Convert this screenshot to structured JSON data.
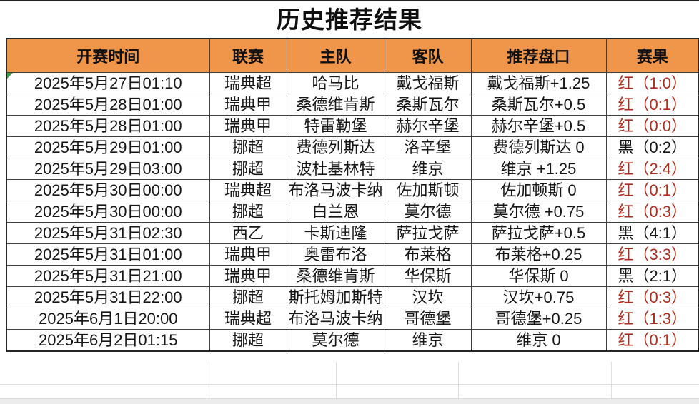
{
  "title": "历史推荐结果",
  "colors": {
    "header_bg": "#F0964B",
    "result_red": "#AE2E20",
    "result_black": "#161616",
    "flag_green": "#3C9B46",
    "border_dark": "#3F3F3F"
  },
  "icons": {
    "cell_flag": "green-corner-triangle"
  },
  "table": {
    "headers": [
      "开赛时间",
      "联赛",
      "主队",
      "客队",
      "推荐盘口",
      "赛果"
    ],
    "rows": [
      {
        "time": "2025年5月27日01:10",
        "league": "瑞典超",
        "home": "哈马比",
        "away": "戴戈福斯",
        "handicap": "戴戈福斯+1.25",
        "result": "红（1:0）",
        "outcome": "red",
        "flag": true
      },
      {
        "time": "2025年5月28日01:00",
        "league": "瑞典甲",
        "home": "桑德维肯斯",
        "away": "桑斯瓦尔",
        "handicap": "桑斯瓦尔+0.5",
        "result": "红（0:1）",
        "outcome": "red",
        "flag": false
      },
      {
        "time": "2025年5月28日01:00",
        "league": "瑞典甲",
        "home": "特雷勒堡",
        "away": "赫尔辛堡",
        "handicap": "赫尔辛堡+0.5",
        "result": "红（0:0）",
        "outcome": "red",
        "flag": false
      },
      {
        "time": "2025年5月29日01:00",
        "league": "挪超",
        "home": "费德列斯达",
        "away": "洛辛堡",
        "handicap": "费德列斯达 0",
        "result": "黑（0:2）",
        "outcome": "black",
        "flag": false
      },
      {
        "time": "2025年5月29日03:00",
        "league": "挪超",
        "home": "波杜基林特",
        "away": "维京",
        "handicap": "维京 +1.25",
        "result": "红（2:4）",
        "outcome": "red",
        "flag": false
      },
      {
        "time": "2025年5月30日00:00",
        "league": "瑞典超",
        "home": "布洛马波卡纳",
        "away": "佐加斯顿",
        "handicap": "佐加顿斯 0",
        "result": "红（0:1）",
        "outcome": "red",
        "flag": false
      },
      {
        "time": "2025年5月30日00:00",
        "league": "挪超",
        "home": "白兰恩",
        "away": "莫尔德",
        "handicap": "莫尔德 +0.75",
        "result": "红（0:3）",
        "outcome": "red",
        "flag": false
      },
      {
        "time": "2025年5月31日02:30",
        "league": "西乙",
        "home": "卡斯迪隆",
        "away": "萨拉戈萨",
        "handicap": "萨拉戈萨+0.5",
        "result": "黑（4:1）",
        "outcome": "black",
        "flag": false
      },
      {
        "time": "2025年5月31日01:00",
        "league": "瑞典甲",
        "home": "奥雷布洛",
        "away": "布莱格",
        "handicap": "布莱格+0.25",
        "result": "红（3:3）",
        "outcome": "red",
        "flag": false
      },
      {
        "time": "2025年5月31日21:00",
        "league": "瑞典甲",
        "home": "桑德维肯斯",
        "away": "华保斯",
        "handicap": "华保斯 0",
        "result": "黑（2:1）",
        "outcome": "black",
        "flag": false
      },
      {
        "time": "2025年5月31日22:00",
        "league": "挪超",
        "home": "斯托姆加斯特",
        "away": "汉坎",
        "handicap": "汉坎+0.75",
        "result": "红（0:3）",
        "outcome": "red",
        "flag": false
      },
      {
        "time": "2025年6月1日20:00",
        "league": "瑞典超",
        "home": "布洛马波卡纳",
        "away": "哥德堡",
        "handicap": "哥德堡+0.25",
        "result": "红（1:3）",
        "outcome": "red",
        "flag": false
      },
      {
        "time": "2025年6月2日01:15",
        "league": "挪超",
        "home": "莫尔德",
        "away": "维京",
        "handicap": "维京 0",
        "result": "红（0:1）",
        "outcome": "red",
        "flag": false
      }
    ]
  }
}
